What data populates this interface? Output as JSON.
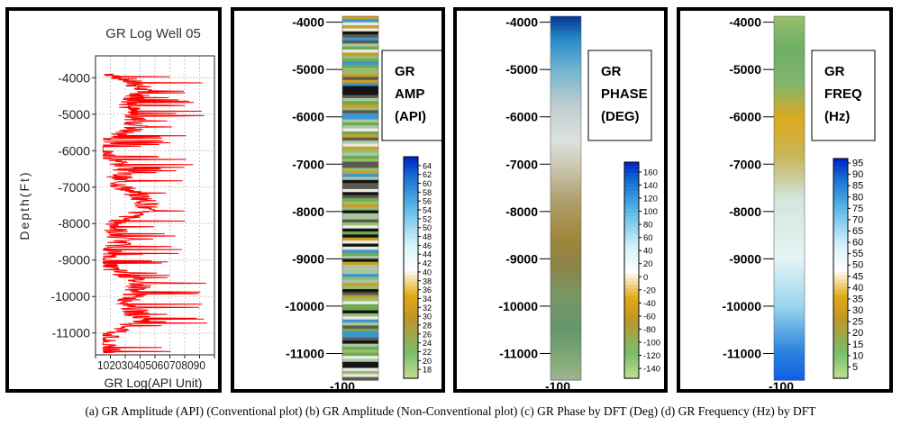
{
  "caption": "(a) GR Amplitude (API) (Conventional plot) (b) GR Amplitude (Non-Conventional plot) (c) GR Phase by DFT (Deg) (d) GR Frequency (Hz) by DFT",
  "chart_data": [
    {
      "id": "a",
      "type": "line",
      "title": "GR Log Well 05",
      "xlabel": "GR Log(API Unit)",
      "ylabel": "Depth(Ft)",
      "x_ticks": [
        10,
        20,
        30,
        40,
        50,
        60,
        70,
        80,
        90
      ],
      "x_tick_text": "102030405060708090",
      "y_ticks": [
        -4000,
        -5000,
        -6000,
        -7000,
        -8000,
        -9000,
        -10000,
        -11000
      ],
      "xlim": [
        10,
        90
      ],
      "ylim": [
        -11600,
        -3400
      ],
      "grid": true,
      "series_color": "#ff0000",
      "depth_range": [
        -11550,
        -3900
      ],
      "gr_range_approx": [
        15,
        85
      ]
    },
    {
      "id": "b",
      "type": "heatmap",
      "legend_title": [
        "GR",
        "AMP",
        "(API)"
      ],
      "y_ticks": [
        -4000,
        -5000,
        -6000,
        -7000,
        -8000,
        -9000,
        -10000,
        -11000
      ],
      "bottom_label": "-100",
      "colorbar_ticks": [
        64,
        62,
        60,
        58,
        56,
        54,
        52,
        50,
        48,
        46,
        44,
        42,
        40,
        38,
        36,
        34,
        32,
        30,
        28,
        26,
        24,
        22,
        20,
        18
      ],
      "colorbar_range": [
        16,
        66
      ]
    },
    {
      "id": "c",
      "type": "heatmap",
      "legend_title": [
        "GR",
        "PHASE",
        "(DEG)"
      ],
      "y_ticks": [
        -4000,
        -5000,
        -6000,
        -7000,
        -8000,
        -9000,
        -10000,
        -11000
      ],
      "bottom_label": "-100",
      "colorbar_ticks": [
        160,
        140,
        120,
        100,
        80,
        60,
        40,
        20,
        0,
        -20,
        -40,
        -60,
        -80,
        -100,
        -120,
        -140
      ],
      "colorbar_range": [
        -155,
        175
      ]
    },
    {
      "id": "d",
      "type": "heatmap",
      "legend_title": [
        "GR",
        "FREQ",
        "(Hz)"
      ],
      "y_ticks": [
        -4000,
        -5000,
        -6000,
        -7000,
        -8000,
        -9000,
        -10000,
        -11000
      ],
      "bottom_label": "-100",
      "colorbar_ticks": [
        95,
        90,
        85,
        80,
        75,
        70,
        65,
        60,
        55,
        50,
        45,
        40,
        35,
        30,
        25,
        20,
        15,
        10,
        5
      ],
      "colorbar_range": [
        0,
        97
      ]
    }
  ]
}
